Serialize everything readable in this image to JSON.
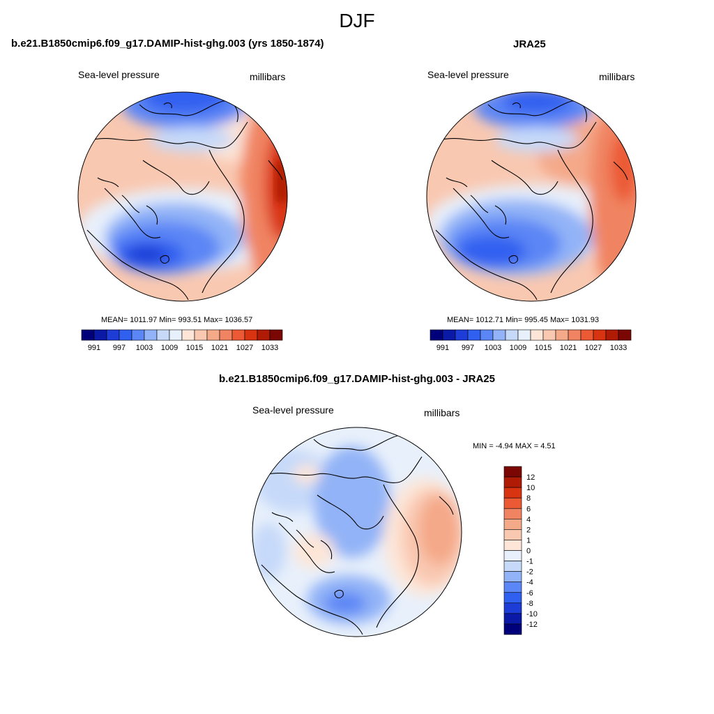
{
  "figure": {
    "title": "DJF"
  },
  "panels": {
    "model": {
      "title": "b.e21.B1850cmip6.f09_g17.DAMIP-hist-ghg.003 (yrs 1850-1874)",
      "field_label": "Sea-level pressure",
      "units_label": "millibars",
      "stats": "MEAN= 1011.97  Min= 993.51  Max= 1036.57",
      "mean": 1011.97,
      "min": 993.51,
      "max": 1036.57
    },
    "obs": {
      "title": "JRA25",
      "field_label": "Sea-level pressure",
      "units_label": "millibars",
      "stats": "MEAN= 1012.71  Min= 995.45  Max= 1031.93",
      "mean": 1012.71,
      "min": 995.45,
      "max": 1031.93
    },
    "diff": {
      "title": "b.e21.B1850cmip6.f09_g17.DAMIP-hist-ghg.003 - JRA25",
      "field_label": "Sea-level pressure",
      "units_label": "millibars",
      "stats": "MIN =  -4.94 MAX =   4.51",
      "min": -4.94,
      "max": 4.51
    }
  },
  "colorbars": {
    "abs": {
      "colors": [
        "#00007a",
        "#0a1aa6",
        "#1e3dd6",
        "#3060f0",
        "#5b86f5",
        "#92b3f7",
        "#c6d9f9",
        "#e8f0fb",
        "#fde6d8",
        "#f9c8b1",
        "#f4a989",
        "#f08462",
        "#eb5a34",
        "#d93412",
        "#b01b06",
        "#7a0703"
      ],
      "tick_labels": [
        "991",
        "997",
        "1003",
        "1009",
        "1015",
        "1021",
        "1027",
        "1033"
      ]
    },
    "diff": {
      "colors": [
        "#00007a",
        "#0a1aa6",
        "#1e3dd6",
        "#3060f0",
        "#5b86f5",
        "#92b3f7",
        "#c6d9f9",
        "#e8f0fb",
        "#fde6d8",
        "#f9c8b1",
        "#f4a989",
        "#f08462",
        "#eb5a34",
        "#d93412",
        "#b01b06",
        "#7a0703"
      ],
      "tick_labels": [
        "12",
        "10",
        "8",
        "6",
        "4",
        "2",
        "1",
        "0",
        "-1",
        "-2",
        "-4",
        "-6",
        "-8",
        "-10",
        "-12"
      ]
    }
  }
}
